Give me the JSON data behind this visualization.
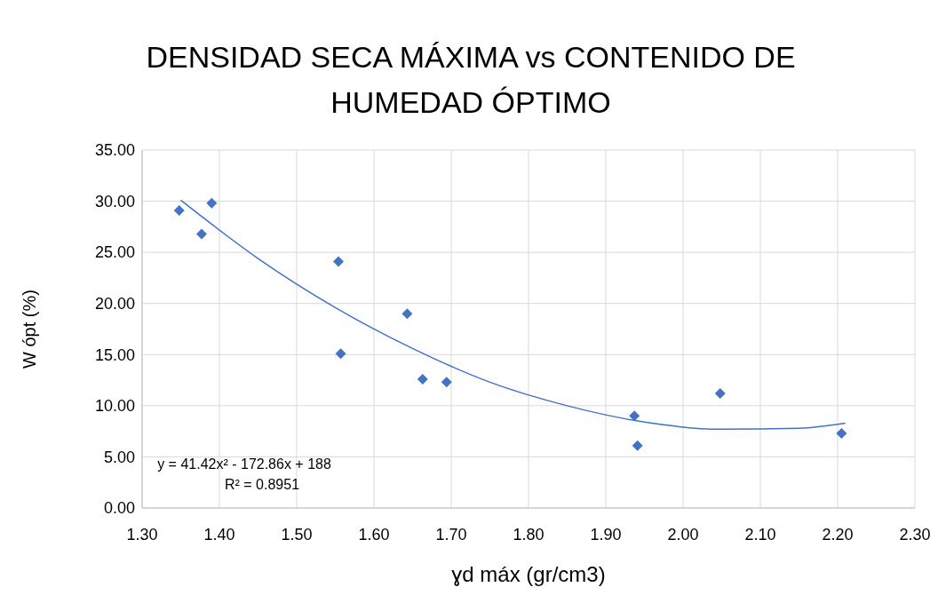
{
  "chart_data": {
    "type": "scatter",
    "title": "DENSIDAD SECA MÁXIMA vs CONTENIDO DE HUMEDAD ÓPTIMO",
    "xlabel": "ɣd máx (gr/cm3)",
    "ylabel": "W ópt (%)",
    "xlim": [
      1.3,
      2.3
    ],
    "xticks": [
      {
        "value": 1.3,
        "label": "1.30"
      },
      {
        "value": 1.4,
        "label": "1.40"
      },
      {
        "value": 1.5,
        "label": "1.50"
      },
      {
        "value": 1.6,
        "label": "1.60"
      },
      {
        "value": 1.7,
        "label": "1.70"
      },
      {
        "value": 1.8,
        "label": "1.80"
      },
      {
        "value": 1.9,
        "label": "1.90"
      },
      {
        "value": 2.0,
        "label": "2.00"
      },
      {
        "value": 2.1,
        "label": "2.10"
      },
      {
        "value": 2.2,
        "label": "2.20"
      },
      {
        "value": 2.3,
        "label": "2.30"
      }
    ],
    "ylim": [
      0,
      35
    ],
    "yticks": [
      {
        "value": 0,
        "label": "0.00"
      },
      {
        "value": 5,
        "label": "5.00"
      },
      {
        "value": 10,
        "label": "10.00"
      },
      {
        "value": 15,
        "label": "15.00"
      },
      {
        "value": 20,
        "label": "20.00"
      },
      {
        "value": 25,
        "label": "25.00"
      },
      {
        "value": 30,
        "label": "30.00"
      },
      {
        "value": 35,
        "label": "35.00"
      }
    ],
    "grid": true,
    "series": [
      {
        "marker": "diamond",
        "color": "#4472c4",
        "x": [
          1.348,
          1.377,
          1.39,
          1.554,
          1.557,
          1.643,
          1.663,
          1.694,
          1.937,
          1.941,
          2.048,
          2.205
        ],
        "values": [
          29.1,
          26.8,
          29.8,
          24.1,
          15.1,
          19.0,
          12.6,
          12.3,
          9.0,
          6.1,
          11.2,
          7.3
        ]
      },
      {
        "type": "line",
        "color": "#4472c4",
        "x": [
          1.35,
          1.45,
          1.55,
          1.65,
          1.75,
          1.85,
          1.95,
          2.05,
          2.15,
          2.21
        ],
        "values": [
          30.1,
          24.4,
          19.6,
          15.6,
          12.3,
          10.0,
          8.4,
          7.7,
          7.8,
          8.3
        ]
      }
    ],
    "annotations": [
      "y = 41.42x² - 172.86x + 188",
      "R² = 0.8951"
    ]
  }
}
